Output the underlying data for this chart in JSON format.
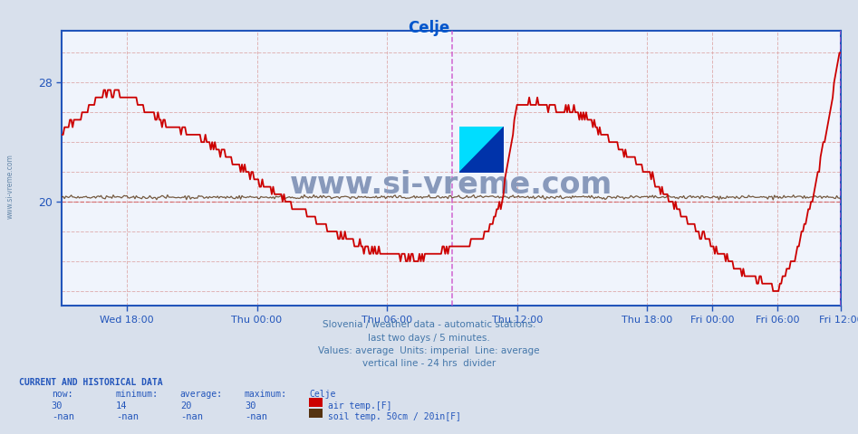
{
  "title": "Celje",
  "title_color": "#0055cc",
  "bg_color": "#d8e0ec",
  "plot_bg_color": "#f0f4fc",
  "grid_color": "#ddaaaa",
  "axis_color": "#2255bb",
  "ylabel_color": "#4477aa",
  "ytick_values": [
    20,
    28
  ],
  "ylim": [
    13.0,
    31.5
  ],
  "xlim": [
    0,
    575
  ],
  "hline_y": 20.0,
  "hline_color": "#cc3333",
  "hline_style": "--",
  "vline_color": "#cc55cc",
  "vline_24h": 288,
  "vline_end": 575,
  "air_temp_color": "#cc0000",
  "soil_temp_color": "#553311",
  "watermark": "www.si-vreme.com",
  "watermark_color": "#8899bb",
  "sidebar_text": "www.si-vreme.com",
  "sidebar_color": "#6688aa",
  "xtick_pos": [
    48,
    144,
    240,
    336,
    432,
    480,
    528,
    575
  ],
  "xtick_labels": [
    "Wed 18:00",
    "Thu 00:00",
    "Thu 06:00",
    "Thu 12:00",
    "Thu 18:00",
    "Fri 00:00",
    "Fri 06:00",
    "Fri 12:00"
  ],
  "footer_lines": [
    "Slovenia / weather data - automatic stations.",
    "last two days / 5 minutes.",
    "Values: average  Units: imperial  Line: average",
    "vertical line - 24 hrs  divider"
  ],
  "footer_color": "#4477aa",
  "legend_title": "CURRENT AND HISTORICAL DATA",
  "legend_headers": [
    "now:",
    "minimum:",
    "average:",
    "maximum:",
    "Celje"
  ],
  "legend_row1_vals": [
    "30",
    "14",
    "20",
    "30"
  ],
  "legend_row2_vals": [
    "-nan",
    "-nan",
    "-nan",
    "-nan"
  ],
  "legend_label1": "air temp.[F]",
  "legend_color1": "#cc0000",
  "legend_label2": "soil temp. 50cm / 20in[F]",
  "legend_color2": "#553311",
  "logo_yellow": "#ffff00",
  "logo_cyan": "#00ddff",
  "logo_blue": "#0033aa",
  "air_keypoints_x": [
    0,
    20,
    35,
    50,
    80,
    100,
    115,
    144,
    175,
    200,
    220,
    240,
    260,
    270,
    295,
    310,
    315,
    325,
    336,
    345,
    360,
    380,
    390,
    395,
    400,
    432,
    460,
    480,
    500,
    520,
    528,
    540,
    555,
    565,
    575
  ],
  "air_keypoints_y": [
    24.5,
    26.5,
    27.5,
    27.0,
    25.0,
    24.5,
    23.5,
    21.5,
    19.5,
    18.0,
    17.0,
    16.5,
    16.2,
    16.5,
    17.0,
    17.5,
    18.0,
    20.0,
    26.5,
    26.8,
    26.3,
    26.0,
    25.5,
    25.0,
    24.5,
    22.0,
    19.0,
    17.0,
    15.5,
    14.5,
    14.2,
    16.0,
    20.5,
    25.0,
    30.5
  ]
}
